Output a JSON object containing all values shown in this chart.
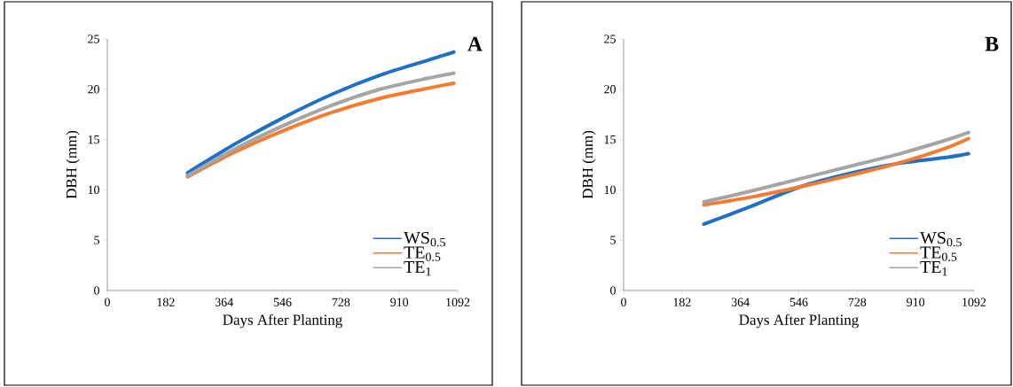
{
  "chart_data": [
    {
      "type": "line",
      "title": "A",
      "xlabel": "Days After Planting",
      "ylabel": "DBH (mm)",
      "xlim": [
        0,
        1092
      ],
      "ylim": [
        0,
        25
      ],
      "xticks": [
        0,
        182,
        364,
        546,
        728,
        910,
        1092
      ],
      "yticks": [
        0,
        5,
        10,
        15,
        20,
        25
      ],
      "grid": false,
      "legend": "bottom right",
      "x": [
        250,
        400,
        550,
        700,
        850,
        1000,
        1080
      ],
      "series": [
        {
          "name": "WS$_{0.5}$",
          "color": "#2170c8",
          "values": [
            11.7,
            14.6,
            17.2,
            19.5,
            21.4,
            22.9,
            23.7
          ]
        },
        {
          "name": "TE$_{0.5}$",
          "color": "#f47c30",
          "values": [
            11.3,
            13.8,
            15.9,
            17.7,
            19.1,
            20.1,
            20.6
          ]
        },
        {
          "name": "TE$_{1}$",
          "color": "#a5a5a5",
          "values": [
            11.4,
            14.1,
            16.4,
            18.4,
            20.0,
            21.1,
            21.6
          ]
        }
      ]
    },
    {
      "type": "line",
      "title": "B",
      "xlabel": "Days After Planting",
      "ylabel": "DBH (mm)",
      "xlim": [
        0,
        1092
      ],
      "ylim": [
        0,
        25
      ],
      "xticks": [
        0,
        182,
        364,
        546,
        728,
        910,
        1092
      ],
      "yticks": [
        0,
        5,
        10,
        15,
        20,
        25
      ],
      "grid": false,
      "legend": "bottom right",
      "x": [
        250,
        400,
        550,
        700,
        850,
        1000,
        1075
      ],
      "series": [
        {
          "name": "WS$_{0.5}$",
          "color": "#2170c8",
          "values": [
            6.6,
            8.4,
            10.3,
            11.6,
            12.6,
            13.2,
            13.6
          ]
        },
        {
          "name": "TE$_{0.5}$",
          "color": "#f47c30",
          "values": [
            8.5,
            9.3,
            10.3,
            11.4,
            12.6,
            14.1,
            15.1
          ]
        },
        {
          "name": "TE$_{1}$",
          "color": "#a5a5a5",
          "values": [
            8.8,
            9.9,
            11.1,
            12.3,
            13.5,
            14.9,
            15.7
          ]
        }
      ]
    }
  ]
}
